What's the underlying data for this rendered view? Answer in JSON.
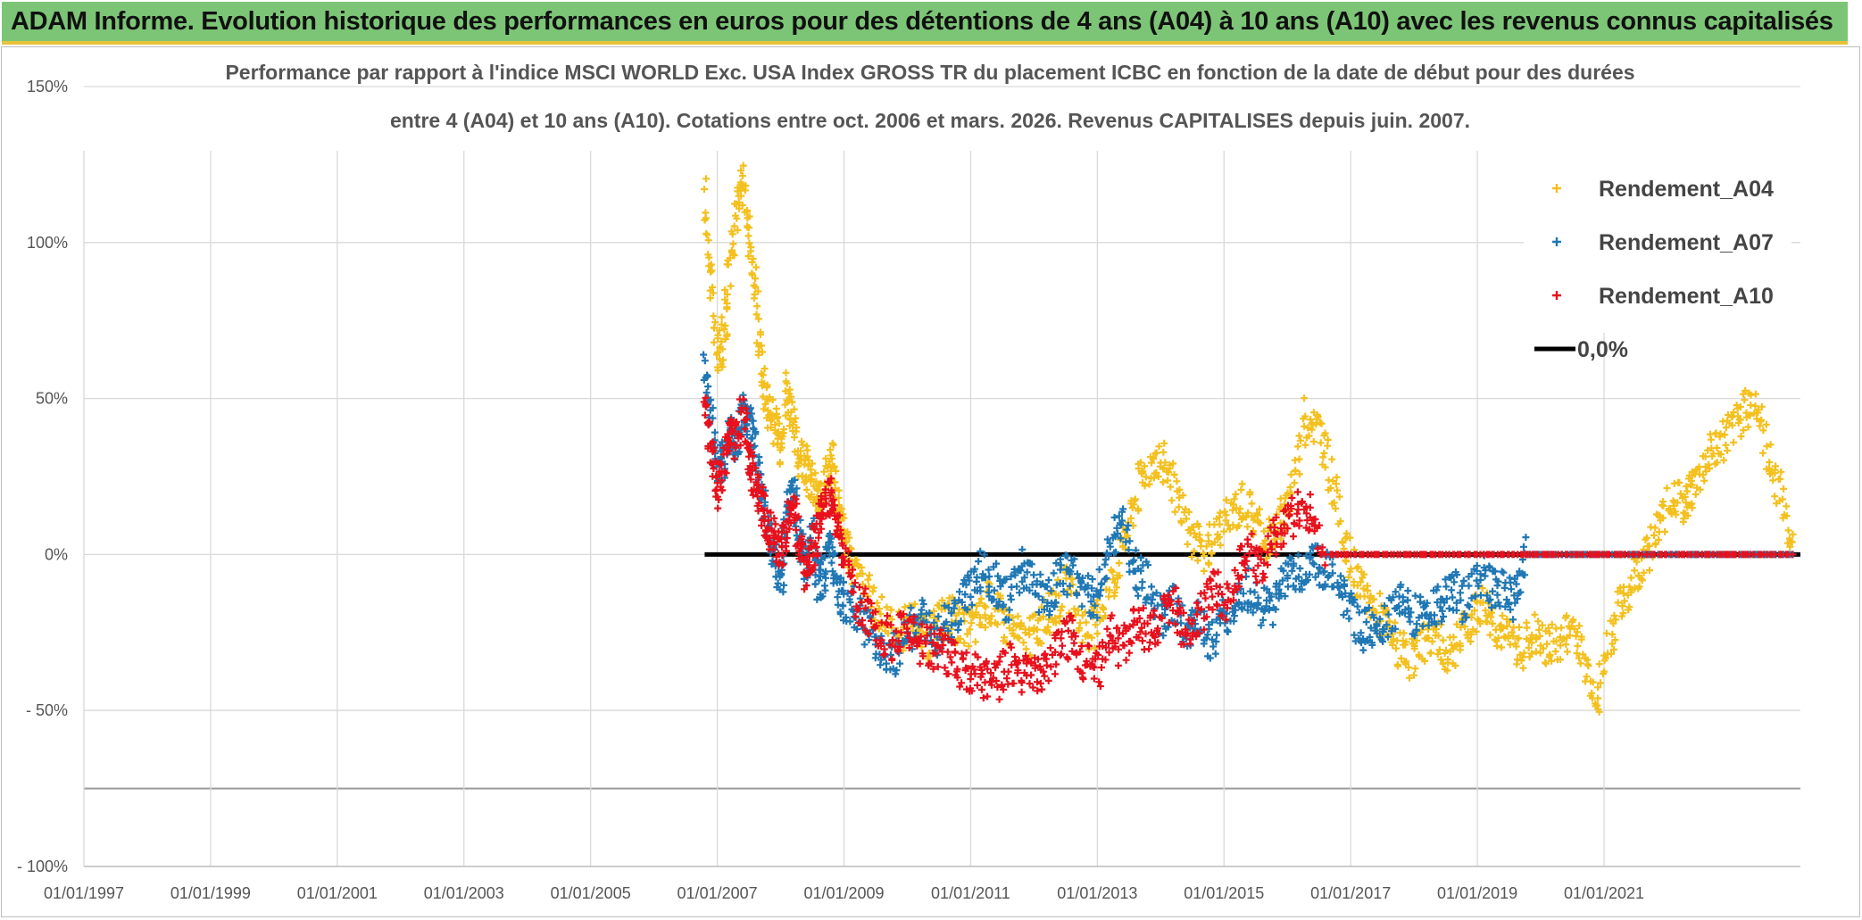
{
  "header": {
    "banner_title": "ADAM Informe. Evolution historique des performances en euros pour des détentions de 4 ans (A04) à 10 ans (A10) avec les revenus connus capitalisés",
    "banner_color": "#7cc576"
  },
  "chart_data": {
    "type": "scatter",
    "title_line1": "Performance par rapport à l'indice MSCI WORLD Exc. USA Index GROSS TR  du placement ICBC en fonction de la date de début pour des durées",
    "title_line2": "entre 4 (A04) et 10 ans (A10). Cotations entre oct. 2006 et mars. 2026. Revenus CAPITALISES depuis juin. 2007.",
    "xlim": [
      1997.0,
      2024.1
    ],
    "ylim": [
      -100,
      150
    ],
    "y_ticks": [
      {
        "value": 150,
        "label": "150%"
      },
      {
        "value": 100,
        "label": "100%"
      },
      {
        "value": 50,
        "label": "50%"
      },
      {
        "value": 0,
        "label": "0%"
      },
      {
        "value": -50,
        "label": "- 50%"
      },
      {
        "value": -75,
        "label": ""
      },
      {
        "value": -100,
        "label": "- 100%"
      }
    ],
    "x_ticks": [
      {
        "value": 1997,
        "label": "01/01/1997"
      },
      {
        "value": 1999,
        "label": "01/01/1999"
      },
      {
        "value": 2001,
        "label": "01/01/2001"
      },
      {
        "value": 2003,
        "label": "01/01/2003"
      },
      {
        "value": 2005,
        "label": "01/01/2005"
      },
      {
        "value": 2007,
        "label": "01/01/2007"
      },
      {
        "value": 2009,
        "label": "01/01/2009"
      },
      {
        "value": 2011,
        "label": "01/01/2011"
      },
      {
        "value": 2013,
        "label": "01/01/2013"
      },
      {
        "value": 2015,
        "label": "01/01/2015"
      },
      {
        "value": 2017,
        "label": "01/01/2017"
      },
      {
        "value": 2019,
        "label": "01/01/2019"
      },
      {
        "value": 2021,
        "label": "01/01/2021"
      }
    ],
    "grid": true,
    "legend_position": "top-right",
    "series": [
      {
        "name": "Rendement_A04",
        "color": "#f4c01e",
        "marker": "+",
        "x": [
          2006.8,
          2006.9,
          2007.0,
          2007.1,
          2007.2,
          2007.3,
          2007.4,
          2007.5,
          2007.6,
          2007.7,
          2007.8,
          2007.9,
          2008.0,
          2008.1,
          2008.2,
          2008.3,
          2008.4,
          2008.5,
          2008.6,
          2008.7,
          2008.8,
          2008.9,
          2009.0,
          2009.1,
          2009.3,
          2009.5,
          2009.7,
          2009.9,
          2010.1,
          2010.3,
          2010.5,
          2010.7,
          2010.9,
          2011.1,
          2011.3,
          2011.5,
          2011.7,
          2011.9,
          2012.1,
          2012.3,
          2012.5,
          2012.7,
          2012.9,
          2013.1,
          2013.3,
          2013.5,
          2013.7,
          2013.9,
          2014.1,
          2014.3,
          2014.5,
          2014.7,
          2014.9,
          2015.1,
          2015.3,
          2015.5,
          2015.7,
          2015.9,
          2016.1,
          2016.3,
          2016.5,
          2016.7,
          2016.9,
          2017.1,
          2017.3,
          2017.5,
          2017.7,
          2017.9,
          2018.1,
          2018.3,
          2018.5,
          2018.7,
          2018.9,
          2019.1,
          2019.3,
          2019.5,
          2019.7,
          2019.9,
          2020.1,
          2020.3,
          2020.5,
          2020.7,
          2020.9,
          2021.1,
          2021.3,
          2021.5,
          2021.7,
          2021.9,
          2022.1,
          2022.3,
          2022.4,
          2022.6,
          2022.8,
          2023.0,
          2023.2,
          2023.4,
          2023.6,
          2023.8,
          2024.0
        ],
        "values": [
          115,
          90,
          62,
          70,
          95,
          110,
          120,
          105,
          85,
          60,
          48,
          42,
          35,
          55,
          40,
          30,
          28,
          22,
          15,
          25,
          30,
          18,
          8,
          -2,
          -10,
          -18,
          -22,
          -25,
          -20,
          -28,
          -22,
          -18,
          -25,
          -22,
          -15,
          -20,
          -25,
          -28,
          -22,
          -18,
          -10,
          -20,
          -25,
          -15,
          -5,
          10,
          25,
          32,
          28,
          15,
          5,
          0,
          8,
          12,
          18,
          10,
          5,
          10,
          25,
          45,
          40,
          25,
          5,
          -10,
          -15,
          -20,
          -28,
          -35,
          -30,
          -25,
          -32,
          -28,
          -20,
          -15,
          -22,
          -28,
          -30,
          -25,
          -30,
          -28,
          -22,
          -35,
          -45,
          -25,
          -15,
          -5,
          0,
          10,
          20,
          15,
          22,
          30,
          35,
          40,
          45,
          50,
          30,
          20,
          0
        ]
      },
      {
        "name": "Rendement_A07",
        "color": "#1f77b4",
        "marker": "+",
        "x": [
          2006.8,
          2006.9,
          2007.0,
          2007.1,
          2007.2,
          2007.3,
          2007.4,
          2007.5,
          2007.6,
          2007.7,
          2007.8,
          2007.9,
          2008.0,
          2008.1,
          2008.2,
          2008.3,
          2008.4,
          2008.5,
          2008.6,
          2008.7,
          2008.8,
          2008.9,
          2009.0,
          2009.2,
          2009.4,
          2009.6,
          2009.8,
          2010.0,
          2010.2,
          2010.4,
          2010.6,
          2010.8,
          2011.0,
          2011.2,
          2011.4,
          2011.6,
          2011.8,
          2012.0,
          2012.2,
          2012.4,
          2012.6,
          2012.8,
          2013.0,
          2013.2,
          2013.4,
          2013.6,
          2013.8,
          2014.0,
          2014.2,
          2014.4,
          2014.6,
          2014.8,
          2015.0,
          2015.2,
          2015.4,
          2015.6,
          2015.8,
          2016.0,
          2016.2,
          2016.4,
          2016.6,
          2016.8,
          2017.0,
          2017.2,
          2017.4,
          2017.6,
          2017.8,
          2018.0,
          2018.2,
          2018.4,
          2018.6,
          2018.8,
          2019.0,
          2019.2,
          2019.4,
          2019.6,
          2019.8,
          2020.0,
          2020.4,
          2020.8,
          2021.2,
          2021.6,
          2022.0,
          2022.4,
          2022.8,
          2023.2,
          2023.6,
          2024.0
        ],
        "values": [
          62,
          45,
          28,
          30,
          40,
          35,
          45,
          42,
          35,
          20,
          10,
          0,
          -10,
          15,
          20,
          5,
          -5,
          5,
          -10,
          -5,
          5,
          -12,
          -15,
          -18,
          -25,
          -30,
          -32,
          -25,
          -20,
          -28,
          -22,
          -18,
          -10,
          -5,
          -10,
          -15,
          -5,
          -10,
          -15,
          -8,
          -5,
          -12,
          -15,
          5,
          10,
          -5,
          -10,
          -20,
          -15,
          -25,
          -20,
          -28,
          -20,
          -15,
          -10,
          -18,
          -15,
          -8,
          -5,
          -2,
          -5,
          -8,
          -18,
          -25,
          -22,
          -20,
          -15,
          -20,
          -18,
          -15,
          -10,
          -15,
          -5,
          -10,
          -12,
          -15,
          0,
          0,
          0,
          0,
          0,
          0,
          0,
          0,
          0,
          0,
          0,
          0
        ]
      },
      {
        "name": "Rendement_A10",
        "color": "#e8101c",
        "marker": "+",
        "x": [
          2006.8,
          2006.9,
          2007.0,
          2007.1,
          2007.2,
          2007.3,
          2007.4,
          2007.5,
          2007.6,
          2007.7,
          2007.8,
          2007.9,
          2008.0,
          2008.1,
          2008.2,
          2008.3,
          2008.4,
          2008.5,
          2008.6,
          2008.7,
          2008.8,
          2008.9,
          2009.0,
          2009.2,
          2009.4,
          2009.6,
          2009.8,
          2010.0,
          2010.2,
          2010.4,
          2010.6,
          2010.8,
          2011.0,
          2011.2,
          2011.4,
          2011.6,
          2011.8,
          2012.0,
          2012.2,
          2012.4,
          2012.6,
          2012.8,
          2013.0,
          2013.2,
          2013.4,
          2013.6,
          2013.8,
          2014.0,
          2014.2,
          2014.4,
          2014.6,
          2014.8,
          2015.0,
          2015.2,
          2015.4,
          2015.6,
          2015.8,
          2016.0,
          2016.2,
          2016.4,
          2016.6,
          2017.0,
          2017.5,
          2018.0,
          2018.5,
          2019.0,
          2019.5,
          2020.0,
          2020.5,
          2021.0,
          2021.5,
          2022.0,
          2022.5,
          2023.0,
          2023.5,
          2024.0
        ],
        "values": [
          50,
          35,
          20,
          28,
          38,
          35,
          45,
          30,
          25,
          15,
          10,
          5,
          0,
          10,
          15,
          5,
          -5,
          0,
          10,
          15,
          20,
          10,
          0,
          -15,
          -20,
          -25,
          -28,
          -22,
          -28,
          -30,
          -32,
          -35,
          -38,
          -40,
          -42,
          -35,
          -38,
          -40,
          -35,
          -30,
          -25,
          -35,
          -38,
          -25,
          -30,
          -20,
          -25,
          -20,
          -15,
          -25,
          -20,
          -10,
          -15,
          -5,
          0,
          -5,
          5,
          10,
          15,
          12,
          0,
          0,
          0,
          0,
          0,
          0,
          0,
          0,
          0,
          0,
          0,
          0,
          0,
          0,
          0,
          0
        ]
      },
      {
        "name": "0,0%",
        "color": "#000000",
        "marker": "line",
        "x": [
          2006.8,
          2024.1
        ],
        "values": [
          0,
          0
        ]
      }
    ]
  }
}
